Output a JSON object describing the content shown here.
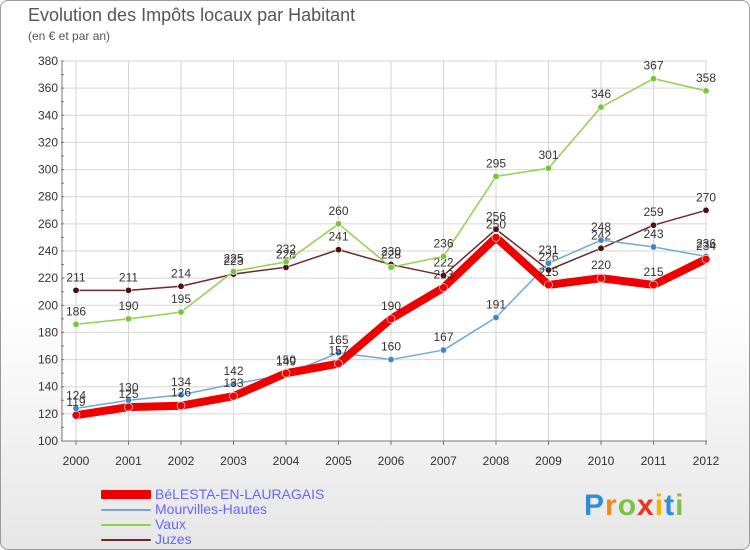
{
  "chart_data": {
    "type": "line",
    "title": "Evolution des Impôts locaux par Habitant",
    "subtitle": "(en € et par an)",
    "xlabel": "",
    "ylabel": "",
    "categories": [
      "2000",
      "2001",
      "2002",
      "2003",
      "2004",
      "2005",
      "2006",
      "2007",
      "2008",
      "2009",
      "2010",
      "2011",
      "2012"
    ],
    "ylim": [
      100,
      380
    ],
    "yticks": [
      100,
      120,
      140,
      160,
      180,
      200,
      220,
      240,
      260,
      280,
      300,
      320,
      340,
      360,
      380
    ],
    "grid": true,
    "legend_position": "bottom-left",
    "series": [
      {
        "name": "Juzes",
        "color": "#6b2a2a",
        "marker": "#4d0e0e",
        "values": [
          211,
          211,
          214,
          223,
          228,
          241,
          230,
          222,
          256,
          226,
          242,
          259,
          270
        ],
        "labels": [
          "211",
          "211",
          "214",
          "223",
          "228",
          "241",
          "230",
          "222",
          "256",
          "226",
          "242",
          "259",
          "270"
        ]
      },
      {
        "name": "Vaux",
        "color": "#8fd14f",
        "marker": "#7ac43a",
        "values": [
          186,
          190,
          195,
          225,
          232,
          260,
          228,
          236,
          295,
          301,
          346,
          367,
          358
        ],
        "labels": [
          "186",
          "190",
          "195",
          "225",
          "232",
          "260",
          "228",
          "236",
          "295",
          "301",
          "346",
          "367",
          "358"
        ]
      },
      {
        "name": "Mourvilles-Hautes",
        "color": "#6fa8d6",
        "marker": "#3f86c7",
        "values": [
          124,
          130,
          134,
          142,
          149,
          165,
          160,
          167,
          191,
          231,
          248,
          243,
          236
        ],
        "labels": [
          "124",
          "130",
          "134",
          "142",
          "149",
          "165",
          "160",
          "167",
          "191",
          "231",
          "248",
          "243",
          "236"
        ]
      },
      {
        "name": "BéLESTA-EN-LAURAGAIS",
        "color": "#ee0000",
        "marker": "#ee0000",
        "values": [
          119,
          125,
          126,
          133,
          150,
          157,
          190,
          213,
          250,
          215,
          220,
          215,
          234
        ],
        "labels": [
          "119",
          "125",
          "126",
          "133",
          "150",
          "157",
          "190",
          "213",
          "250",
          "215",
          "220",
          "215",
          "234"
        ]
      }
    ],
    "legend_order": [
      "BéLESTA-EN-LAURAGAIS",
      "Mourvilles-Hautes",
      "Vaux",
      "Juzes"
    ]
  },
  "logo": {
    "letters": [
      "P",
      "r",
      "o",
      "x",
      "i",
      "t",
      "i"
    ],
    "colors": [
      "#2e8fd8",
      "#f08a1c",
      "#7cc242",
      "#e8351e",
      "#f5b400",
      "#2e8fd8",
      "#7cc242"
    ]
  }
}
